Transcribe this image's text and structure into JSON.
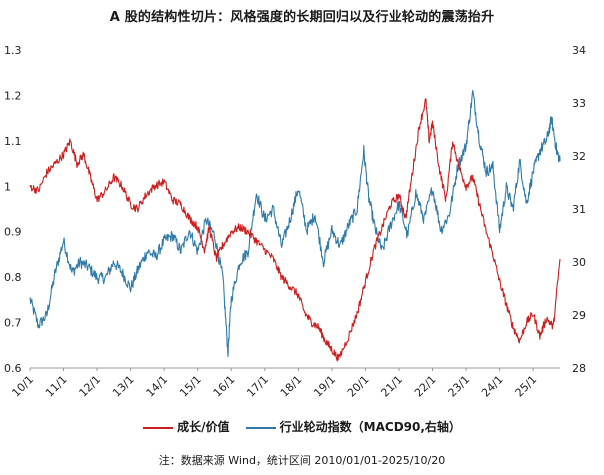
{
  "chart_data": {
    "type": "line",
    "title": "A 股的结构性切片：风格强度的长期回归以及行业轮动的震荡抬升",
    "note": "注：数据来源 Wind，统计区间 2010/01/01-2025/10/20",
    "x_range": [
      2010.0,
      2025.8
    ],
    "x_tick_labels": [
      "10/1",
      "11/1",
      "12/1",
      "13/1",
      "14/1",
      "15/1",
      "16/1",
      "17/1",
      "18/1",
      "19/1",
      "20/1",
      "21/1",
      "22/1",
      "23/1",
      "24/1",
      "25/1"
    ],
    "x_tick_values": [
      2010,
      2011,
      2012,
      2013,
      2014,
      2015,
      2016,
      2017,
      2018,
      2019,
      2020,
      2021,
      2022,
      2023,
      2024,
      2025
    ],
    "y_left": {
      "ylim": [
        0.6,
        1.3
      ],
      "ticks": [
        0.6,
        0.7,
        0.8,
        0.9,
        1,
        1.1,
        1.2,
        1.3
      ],
      "tick_labels": [
        "0.6",
        "0.7",
        "0.8",
        "0.9",
        "1",
        "1.1",
        "1.2",
        "1.3"
      ]
    },
    "y_right": {
      "ylim": [
        28,
        34
      ],
      "ticks": [
        28,
        29,
        30,
        31,
        32,
        33,
        34
      ],
      "tick_labels": [
        "28",
        "29",
        "30",
        "31",
        "32",
        "33",
        "34"
      ]
    },
    "grid": false,
    "legend_position": "bottom",
    "series": [
      {
        "name": "成长/价值",
        "axis": "left",
        "color": "#cc1e1e",
        "points": [
          [
            2010.0,
            1.0
          ],
          [
            2010.25,
            0.99
          ],
          [
            2010.5,
            1.03
          ],
          [
            2010.75,
            1.05
          ],
          [
            2011.0,
            1.07
          ],
          [
            2011.2,
            1.1
          ],
          [
            2011.4,
            1.05
          ],
          [
            2011.6,
            1.07
          ],
          [
            2011.8,
            1.02
          ],
          [
            2012.0,
            0.97
          ],
          [
            2012.25,
            0.99
          ],
          [
            2012.5,
            1.02
          ],
          [
            2012.75,
            1.0
          ],
          [
            2013.0,
            0.96
          ],
          [
            2013.2,
            0.95
          ],
          [
            2013.45,
            0.98
          ],
          [
            2013.7,
            1.0
          ],
          [
            2014.0,
            1.01
          ],
          [
            2014.25,
            0.97
          ],
          [
            2014.5,
            0.96
          ],
          [
            2014.75,
            0.93
          ],
          [
            2015.0,
            0.91
          ],
          [
            2015.2,
            0.86
          ],
          [
            2015.35,
            0.91
          ],
          [
            2015.55,
            0.84
          ],
          [
            2015.75,
            0.87
          ],
          [
            2016.0,
            0.9
          ],
          [
            2016.25,
            0.91
          ],
          [
            2016.5,
            0.9
          ],
          [
            2016.75,
            0.88
          ],
          [
            2017.0,
            0.86
          ],
          [
            2017.25,
            0.84
          ],
          [
            2017.5,
            0.8
          ],
          [
            2017.75,
            0.78
          ],
          [
            2018.0,
            0.76
          ],
          [
            2018.2,
            0.72
          ],
          [
            2018.4,
            0.7
          ],
          [
            2018.6,
            0.69
          ],
          [
            2018.8,
            0.66
          ],
          [
            2019.0,
            0.64
          ],
          [
            2019.2,
            0.62
          ],
          [
            2019.5,
            0.67
          ],
          [
            2019.75,
            0.72
          ],
          [
            2020.0,
            0.79
          ],
          [
            2020.25,
            0.86
          ],
          [
            2020.5,
            0.91
          ],
          [
            2020.75,
            0.96
          ],
          [
            2021.0,
            0.98
          ],
          [
            2021.2,
            0.93
          ],
          [
            2021.4,
            1.03
          ],
          [
            2021.6,
            1.13
          ],
          [
            2021.8,
            1.19
          ],
          [
            2021.9,
            1.1
          ],
          [
            2022.0,
            1.14
          ],
          [
            2022.2,
            1.04
          ],
          [
            2022.4,
            0.97
          ],
          [
            2022.6,
            1.1
          ],
          [
            2022.8,
            1.04
          ],
          [
            2023.0,
            1.0
          ],
          [
            2023.2,
            1.02
          ],
          [
            2023.4,
            0.96
          ],
          [
            2023.6,
            0.9
          ],
          [
            2023.8,
            0.85
          ],
          [
            2024.0,
            0.79
          ],
          [
            2024.2,
            0.74
          ],
          [
            2024.4,
            0.69
          ],
          [
            2024.6,
            0.66
          ],
          [
            2024.8,
            0.7
          ],
          [
            2025.0,
            0.72
          ],
          [
            2025.2,
            0.67
          ],
          [
            2025.4,
            0.71
          ],
          [
            2025.6,
            0.69
          ],
          [
            2025.8,
            0.84
          ]
        ]
      },
      {
        "name": "行业轮动指数（MACD90,右轴）",
        "axis": "right",
        "color": "#2f7aa8",
        "points": [
          [
            2010.0,
            29.3
          ],
          [
            2010.25,
            28.8
          ],
          [
            2010.5,
            29.0
          ],
          [
            2010.75,
            29.8
          ],
          [
            2011.0,
            30.4
          ],
          [
            2011.25,
            29.8
          ],
          [
            2011.5,
            30.0
          ],
          [
            2011.75,
            29.9
          ],
          [
            2012.0,
            29.7
          ],
          [
            2012.25,
            29.7
          ],
          [
            2012.5,
            30.0
          ],
          [
            2012.75,
            29.8
          ],
          [
            2013.0,
            29.5
          ],
          [
            2013.25,
            29.9
          ],
          [
            2013.5,
            30.2
          ],
          [
            2013.75,
            30.1
          ],
          [
            2014.0,
            30.4
          ],
          [
            2014.25,
            30.5
          ],
          [
            2014.5,
            30.2
          ],
          [
            2014.75,
            30.6
          ],
          [
            2015.0,
            30.2
          ],
          [
            2015.25,
            30.8
          ],
          [
            2015.5,
            30.5
          ],
          [
            2015.75,
            29.7
          ],
          [
            2015.9,
            28.3
          ],
          [
            2016.0,
            29.3
          ],
          [
            2016.25,
            30.0
          ],
          [
            2016.5,
            30.2
          ],
          [
            2016.75,
            31.3
          ],
          [
            2017.0,
            30.8
          ],
          [
            2017.25,
            31.0
          ],
          [
            2017.5,
            30.3
          ],
          [
            2017.75,
            30.8
          ],
          [
            2018.0,
            31.4
          ],
          [
            2018.25,
            30.6
          ],
          [
            2018.5,
            30.9
          ],
          [
            2018.75,
            30.0
          ],
          [
            2019.0,
            30.6
          ],
          [
            2019.25,
            30.3
          ],
          [
            2019.5,
            30.7
          ],
          [
            2019.75,
            31.0
          ],
          [
            2019.95,
            32.1
          ],
          [
            2020.1,
            31.2
          ],
          [
            2020.3,
            30.6
          ],
          [
            2020.5,
            30.2
          ],
          [
            2020.75,
            30.7
          ],
          [
            2021.0,
            31.1
          ],
          [
            2021.25,
            30.5
          ],
          [
            2021.5,
            31.3
          ],
          [
            2021.75,
            30.8
          ],
          [
            2022.0,
            31.4
          ],
          [
            2022.25,
            30.6
          ],
          [
            2022.5,
            30.9
          ],
          [
            2022.75,
            31.8
          ],
          [
            2023.0,
            32.2
          ],
          [
            2023.2,
            33.2
          ],
          [
            2023.4,
            32.3
          ],
          [
            2023.6,
            31.7
          ],
          [
            2023.8,
            31.8
          ],
          [
            2024.0,
            30.6
          ],
          [
            2024.2,
            31.4
          ],
          [
            2024.4,
            31.0
          ],
          [
            2024.6,
            31.9
          ],
          [
            2024.8,
            31.1
          ],
          [
            2025.0,
            31.7
          ],
          [
            2025.2,
            32.1
          ],
          [
            2025.4,
            32.3
          ],
          [
            2025.55,
            32.7
          ],
          [
            2025.7,
            32.1
          ],
          [
            2025.8,
            31.9
          ]
        ]
      }
    ]
  }
}
